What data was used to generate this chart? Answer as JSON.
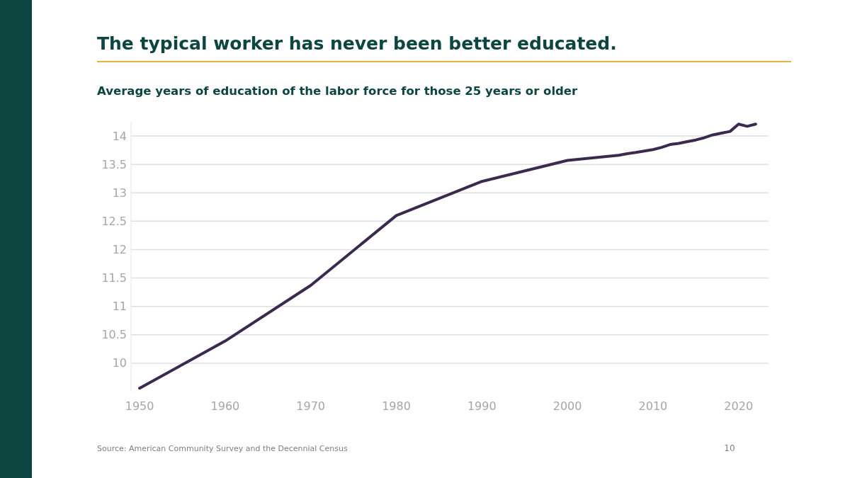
{
  "chart_data": {
    "type": "line",
    "title": "The typical worker has never been better educated.",
    "subtitle": "Average years of education of the labor force for those 25 years or older",
    "x": [
      1950,
      1960,
      1970,
      1980,
      1990,
      2000,
      2006,
      2007,
      2008,
      2010,
      2011,
      2012,
      2013,
      2014,
      2015,
      2016,
      2017,
      2018,
      2019,
      2020,
      2021,
      2022
    ],
    "series": [
      {
        "color": "#3b2a4f",
        "values": [
          9.56,
          10.39,
          11.37,
          12.6,
          13.2,
          13.57,
          13.66,
          13.69,
          13.71,
          13.76,
          13.8,
          13.85,
          13.87,
          13.9,
          13.93,
          13.97,
          14.02,
          14.05,
          14.08,
          14.21,
          14.17,
          14.21
        ]
      }
    ],
    "xlim": [
      1949,
      2023.5
    ],
    "xticks": [
      1950,
      1960,
      1970,
      1980,
      1990,
      2000,
      2010,
      2020
    ],
    "ylim": [
      9.5,
      14.25
    ],
    "yticks": [
      10,
      10.5,
      11,
      11.5,
      12,
      12.5,
      13,
      13.5,
      14
    ],
    "grid": "y",
    "marker": "none",
    "line_style": "solid",
    "annotations": [
      "Source: American Community Survey and the Decennial Census",
      "10"
    ]
  }
}
